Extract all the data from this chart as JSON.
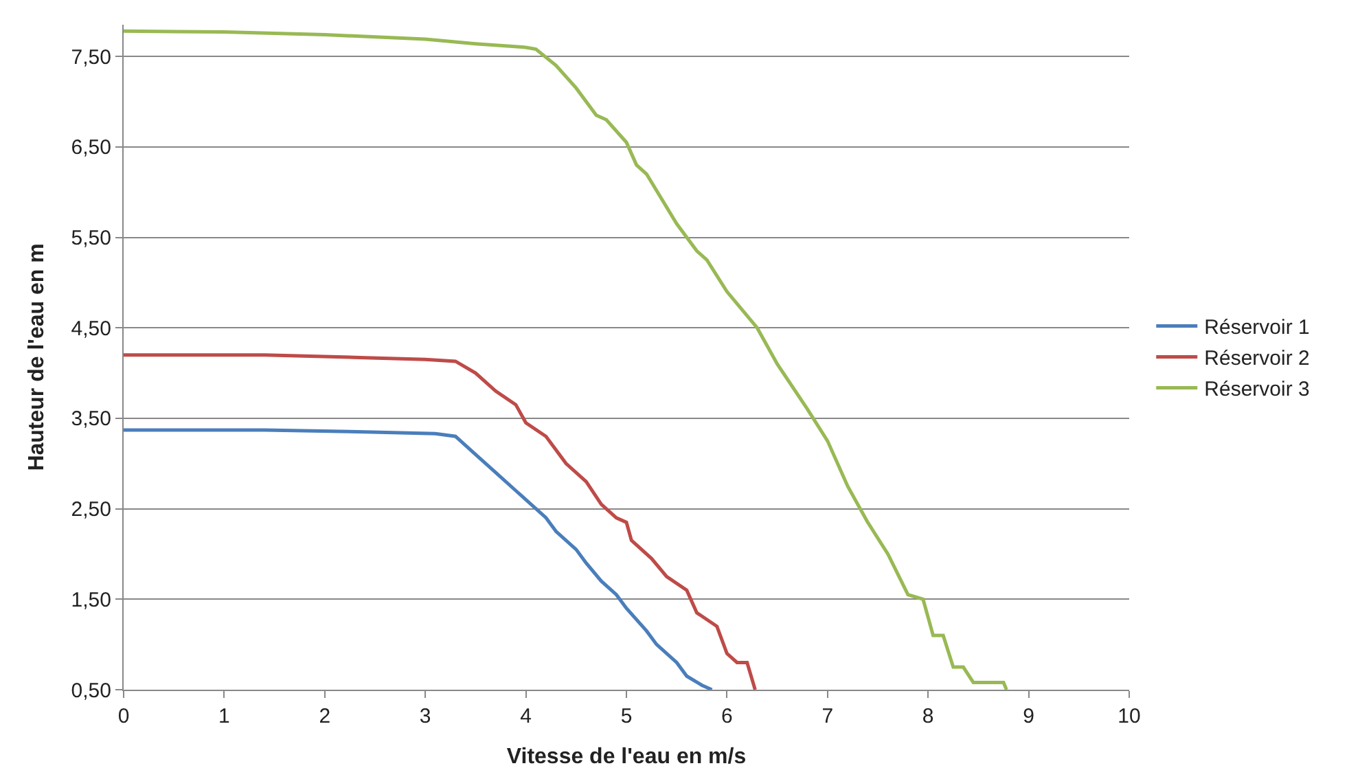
{
  "chart_data": {
    "type": "line",
    "xlabel": "Vitesse de l'eau en m/s",
    "ylabel": "Hauteur de l'eau en m",
    "xlim": [
      0,
      10
    ],
    "xticks": [
      0,
      1,
      2,
      3,
      4,
      5,
      6,
      7,
      8,
      9,
      10
    ],
    "ylim": [
      0.5,
      7.85
    ],
    "yticks": [
      {
        "value": 0.5,
        "label": "0,50"
      },
      {
        "value": 1.5,
        "label": "1,50"
      },
      {
        "value": 2.5,
        "label": "2,50"
      },
      {
        "value": 3.5,
        "label": "3,50"
      },
      {
        "value": 4.5,
        "label": "4,50"
      },
      {
        "value": 5.5,
        "label": "5,50"
      },
      {
        "value": 6.5,
        "label": "6,50"
      },
      {
        "value": 7.5,
        "label": "7,50"
      }
    ],
    "grid": "y",
    "legend": "right",
    "marker": "none",
    "line_style": "solid",
    "series": [
      {
        "name": "Réservoir 1",
        "color": "#4a7ebb",
        "x": [
          0,
          1.4,
          2.4,
          3.1,
          3.3,
          3.5,
          3.7,
          3.9,
          4.0,
          4.2,
          4.3,
          4.5,
          4.6,
          4.75,
          4.9,
          5.0,
          5.2,
          5.3,
          5.5,
          5.6,
          5.75,
          5.85
        ],
        "values": [
          3.37,
          3.37,
          3.35,
          3.33,
          3.3,
          3.1,
          2.9,
          2.7,
          2.6,
          2.4,
          2.25,
          2.05,
          1.9,
          1.7,
          1.55,
          1.4,
          1.15,
          1.0,
          0.8,
          0.65,
          0.55,
          0.5
        ]
      },
      {
        "name": "Réservoir 2",
        "color": "#be4b48",
        "x": [
          0,
          1.4,
          2.4,
          3.0,
          3.3,
          3.5,
          3.7,
          3.9,
          4.0,
          4.2,
          4.4,
          4.6,
          4.75,
          4.9,
          5.0,
          5.05,
          5.25,
          5.4,
          5.6,
          5.7,
          5.9,
          6.0,
          6.1,
          6.2,
          6.28
        ],
        "values": [
          4.2,
          4.2,
          4.17,
          4.15,
          4.13,
          4.0,
          3.8,
          3.65,
          3.45,
          3.3,
          3.0,
          2.8,
          2.55,
          2.4,
          2.35,
          2.15,
          1.95,
          1.75,
          1.6,
          1.35,
          1.2,
          0.9,
          0.8,
          0.8,
          0.5
        ]
      },
      {
        "name": "Réservoir 3",
        "color": "#98b954",
        "x": [
          0,
          1.0,
          2.0,
          3.0,
          3.5,
          4.0,
          4.1,
          4.3,
          4.5,
          4.7,
          4.8,
          5.0,
          5.1,
          5.2,
          5.5,
          5.7,
          5.8,
          6.0,
          6.3,
          6.5,
          6.8,
          7.0,
          7.1,
          7.2,
          7.4,
          7.6,
          7.8,
          7.95,
          8.05,
          8.15,
          8.25,
          8.35,
          8.45,
          8.75,
          8.78
        ],
        "values": [
          7.78,
          7.77,
          7.74,
          7.69,
          7.64,
          7.6,
          7.58,
          7.4,
          7.15,
          6.85,
          6.8,
          6.55,
          6.3,
          6.2,
          5.65,
          5.35,
          5.25,
          4.9,
          4.5,
          4.1,
          3.6,
          3.25,
          3.0,
          2.75,
          2.35,
          2.0,
          1.55,
          1.5,
          1.1,
          1.1,
          0.75,
          0.75,
          0.58,
          0.58,
          0.5
        ]
      }
    ]
  }
}
